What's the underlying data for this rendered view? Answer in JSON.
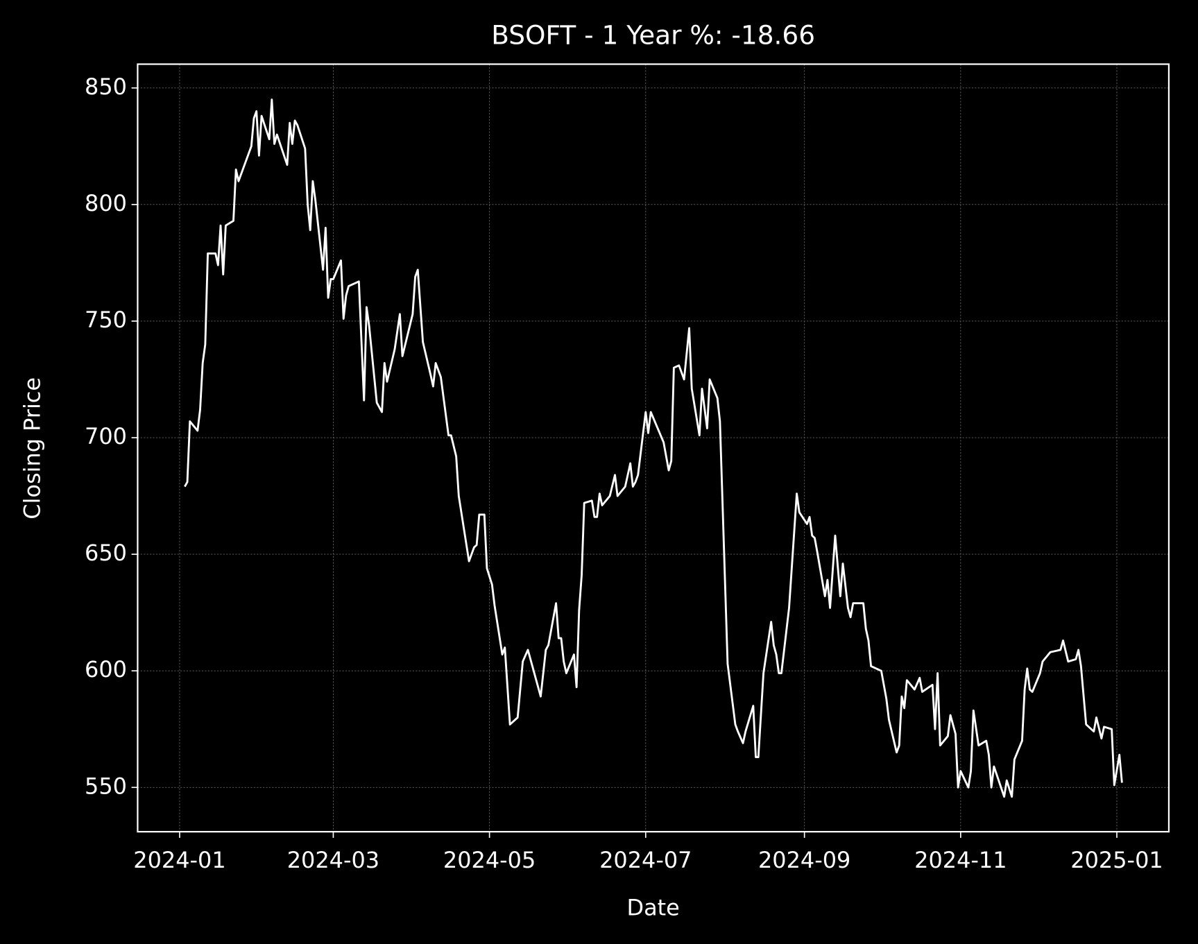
{
  "chart_data": {
    "type": "line",
    "title": "BSOFT - 1 Year %: -18.66",
    "x_label": "Date",
    "y_label": "Closing Price",
    "x": [
      2,
      3,
      4,
      7,
      8,
      9,
      10,
      11,
      14,
      15,
      16,
      17,
      18,
      21,
      22,
      23,
      28,
      29,
      30,
      31,
      32,
      35,
      36,
      37,
      38,
      42,
      43,
      44,
      45,
      46,
      49,
      50,
      51,
      52,
      53,
      56,
      57,
      58,
      59,
      60,
      63,
      64,
      65,
      66,
      70,
      72,
      73,
      74,
      77,
      79,
      80,
      81,
      84,
      86,
      87,
      91,
      92,
      93,
      95,
      98,
      99,
      100,
      102,
      105,
      106,
      108,
      109,
      113,
      115,
      116,
      117,
      119,
      120,
      122,
      123,
      126,
      127,
      129,
      132,
      134,
      136,
      141,
      143,
      144,
      147,
      148,
      149,
      150,
      151,
      154,
      155,
      156,
      157,
      158,
      161,
      162,
      163,
      164,
      165,
      168,
      170,
      171,
      174,
      176,
      177,
      178,
      179,
      182,
      183,
      184,
      189,
      191,
      192,
      193,
      195,
      197,
      199,
      200,
      203,
      204,
      206,
      207,
      210,
      211,
      214,
      217,
      218,
      220,
      221,
      224,
      225,
      226,
      228,
      231,
      232,
      233,
      234,
      235,
      238,
      241,
      242,
      245,
      246,
      247,
      248,
      249,
      252,
      253,
      254,
      256,
      258,
      259,
      261,
      262,
      263,
      266,
      267,
      268,
      269,
      270,
      274,
      275,
      276,
      277,
      280,
      281,
      282,
      283,
      284,
      287,
      289,
      290,
      294,
      295,
      296,
      297,
      300,
      301,
      303,
      304,
      305,
      308,
      309,
      310,
      312,
      315,
      316,
      317,
      318,
      322,
      323,
      325,
      326,
      329,
      330,
      331,
      332,
      333,
      336,
      337,
      340,
      344,
      345,
      347,
      350,
      351,
      352,
      354,
      357,
      358,
      360,
      361,
      364,
      365,
      367,
      368
    ],
    "series": [
      {
        "name": "Closing Price",
        "color": "#ffffff",
        "values": [
          679,
          681,
          707,
          703,
          712,
          732,
          740,
          779,
          779,
          774,
          791,
          770,
          791,
          793,
          815,
          810,
          825,
          837,
          840,
          821,
          838,
          828,
          845,
          826,
          830,
          817,
          835,
          826,
          836,
          834,
          824,
          800,
          789,
          810,
          802,
          772,
          790,
          760,
          768,
          768,
          776,
          751,
          761,
          765,
          767,
          716,
          756,
          748,
          715,
          711,
          732,
          724,
          738,
          753,
          735,
          753,
          769,
          772,
          741,
          727,
          722,
          732,
          726,
          701,
          701,
          692,
          675,
          647,
          653,
          654,
          667,
          667,
          644,
          637,
          628,
          607,
          610,
          577,
          580,
          604,
          609,
          589,
          609,
          611,
          629,
          614,
          614,
          604,
          599,
          607,
          593,
          626,
          641,
          672,
          673,
          666,
          666,
          676,
          671,
          675,
          684,
          675,
          679,
          689,
          679,
          681,
          684,
          711,
          702,
          711,
          698,
          686,
          690,
          730,
          731,
          725,
          747,
          721,
          701,
          721,
          704,
          725,
          717,
          707,
          603,
          577,
          574,
          569,
          574,
          585,
          563,
          563,
          599,
          621,
          611,
          607,
          599,
          599,
          627,
          676,
          668,
          663,
          666,
          658,
          657,
          651,
          632,
          639,
          627,
          658,
          632,
          646,
          627,
          623,
          629,
          629,
          629,
          618,
          613,
          602,
          600,
          594,
          588,
          579,
          565,
          568,
          589,
          584,
          596,
          592,
          597,
          591,
          594,
          575,
          599,
          568,
          572,
          581,
          573,
          550,
          557,
          550,
          557,
          583,
          568,
          570,
          564,
          550,
          559,
          546,
          553,
          546,
          562,
          570,
          592,
          601,
          592,
          591,
          599,
          604,
          608,
          609,
          613,
          604,
          605,
          609,
          602,
          577,
          574,
          580,
          571,
          576,
          575,
          551,
          564,
          552
        ]
      }
    ],
    "xlim": [
      -16.4,
      386.3
    ],
    "xticks": [
      {
        "value": 0,
        "label": "2024-01"
      },
      {
        "value": 60,
        "label": "2024-03"
      },
      {
        "value": 121,
        "label": "2024-05"
      },
      {
        "value": 182,
        "label": "2024-07"
      },
      {
        "value": 244,
        "label": "2024-09"
      },
      {
        "value": 305,
        "label": "2024-11"
      },
      {
        "value": 366,
        "label": "2025-01"
      }
    ],
    "ylim": [
      531,
      860.2
    ],
    "yticks": [
      550,
      600,
      650,
      700,
      750,
      800,
      850
    ],
    "grid": true
  }
}
